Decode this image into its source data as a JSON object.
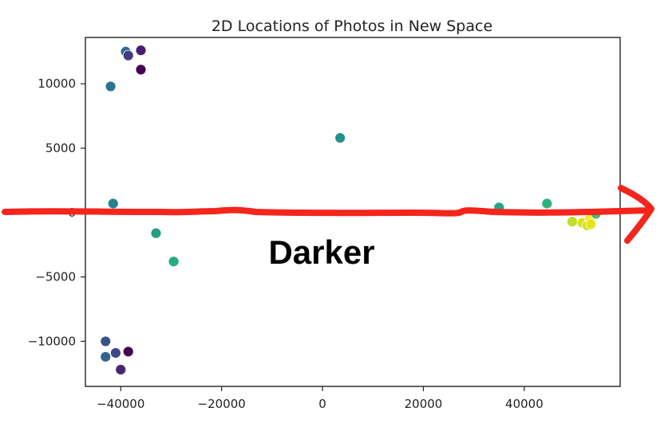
{
  "chart_data": {
    "type": "scatter",
    "title": "2D Locations of Photos in New Space",
    "xlabel": "",
    "ylabel": "",
    "xlim": [
      -47000,
      59000
    ],
    "ylim": [
      -13500,
      13600
    ],
    "xticks": [
      -40000,
      -20000,
      0,
      20000,
      40000
    ],
    "xtick_labels": [
      "−40000",
      "−20000",
      "0",
      "20000",
      "40000"
    ],
    "yticks": [
      10000,
      5000,
      0,
      -5000,
      -10000
    ],
    "ytick_labels": [
      "10000",
      "5000",
      "0",
      "−5000",
      "−10000"
    ],
    "grid": false,
    "legend": false,
    "colormap": "viridis",
    "points": [
      {
        "x": -39000,
        "y": 12500,
        "color": "#31688e"
      },
      {
        "x": -38500,
        "y": 12200,
        "color": "#443983"
      },
      {
        "x": -36000,
        "y": 12600,
        "color": "#481f70"
      },
      {
        "x": -36000,
        "y": 11100,
        "color": "#440154"
      },
      {
        "x": -42000,
        "y": 9800,
        "color": "#2c728e"
      },
      {
        "x": 3500,
        "y": 5800,
        "color": "#21918c"
      },
      {
        "x": -41500,
        "y": 700,
        "color": "#26828e"
      },
      {
        "x": -33000,
        "y": -1600,
        "color": "#23a083"
      },
      {
        "x": -29500,
        "y": -3800,
        "color": "#25ac82"
      },
      {
        "x": 35000,
        "y": 400,
        "color": "#22a884"
      },
      {
        "x": 44500,
        "y": 700,
        "color": "#2db27d"
      },
      {
        "x": 49500,
        "y": -700,
        "color": "#bddf26"
      },
      {
        "x": 51500,
        "y": -800,
        "color": "#dde318"
      },
      {
        "x": 52500,
        "y": -1000,
        "color": "#cae11f"
      },
      {
        "x": 53000,
        "y": -500,
        "color": "#fde725"
      },
      {
        "x": 53200,
        "y": -900,
        "color": "#e5e419"
      },
      {
        "x": 54200,
        "y": -100,
        "color": "#44bf70"
      },
      {
        "x": -43000,
        "y": -10000,
        "color": "#3b528b"
      },
      {
        "x": -43000,
        "y": -11200,
        "color": "#33638d"
      },
      {
        "x": -41000,
        "y": -10900,
        "color": "#3f4788"
      },
      {
        "x": -38500,
        "y": -10800,
        "color": "#440154"
      },
      {
        "x": -40000,
        "y": -12200,
        "color": "#482677"
      }
    ],
    "annotation": "Darker"
  },
  "colors": {
    "arrow": "#f4251c",
    "axes": "#222222",
    "marker_edge": "#ffffff"
  }
}
